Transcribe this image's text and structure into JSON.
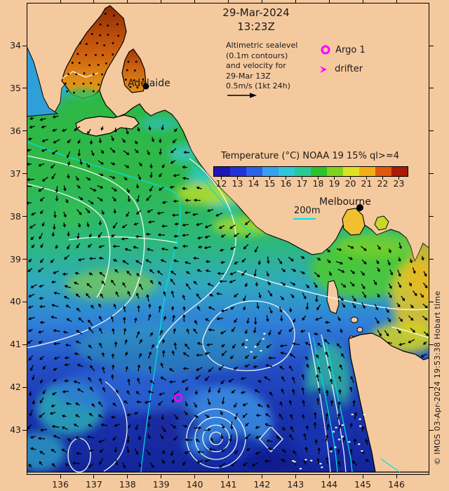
{
  "title": {
    "date": "29-Mar-2024",
    "time": "13:23Z"
  },
  "annotation": {
    "lines": [
      "Altimetric sealevel",
      "(0.1m contours)",
      "and velocity for",
      "29-Mar 13Z",
      "0.5m/s (1kt 24h)"
    ]
  },
  "legend": {
    "argo_label": "Argo 1",
    "drifter_label": "drifter",
    "marker_color": "#ff00ff"
  },
  "colorbar": {
    "title": "Temperature (°C) NOAA 19 15% ql>=4",
    "ticks": [
      "12",
      "13",
      "14",
      "15",
      "16",
      "17",
      "18",
      "19",
      "20",
      "21",
      "22",
      "23"
    ],
    "colors": [
      "#1c17b4",
      "#2033d6",
      "#2b62e8",
      "#38a0f0",
      "#2fc6d8",
      "#2bc896",
      "#2cc22c",
      "#7ed321",
      "#dde31f",
      "#f2ae17",
      "#e2570e",
      "#aa1a05"
    ]
  },
  "map_labels": {
    "adelaide": "Adelaide",
    "melbourne": "Melbourne",
    "depth": "200m"
  },
  "axes": {
    "lat": [
      "34",
      "35",
      "36",
      "37",
      "38",
      "39",
      "40",
      "41",
      "42",
      "43"
    ],
    "lon": [
      "136",
      "137",
      "138",
      "139",
      "140",
      "141",
      "142",
      "143",
      "144",
      "145",
      "146"
    ]
  },
  "credit": "© IMOS 03-Apr-2024 19:53:38 Hobart time",
  "theme": {
    "background": "#f5c99e",
    "land": "#f5c99e",
    "coast": "#000000",
    "contour": "#ffffff",
    "bathy_line": "#00e0e0",
    "marker": "#ff00ff"
  }
}
